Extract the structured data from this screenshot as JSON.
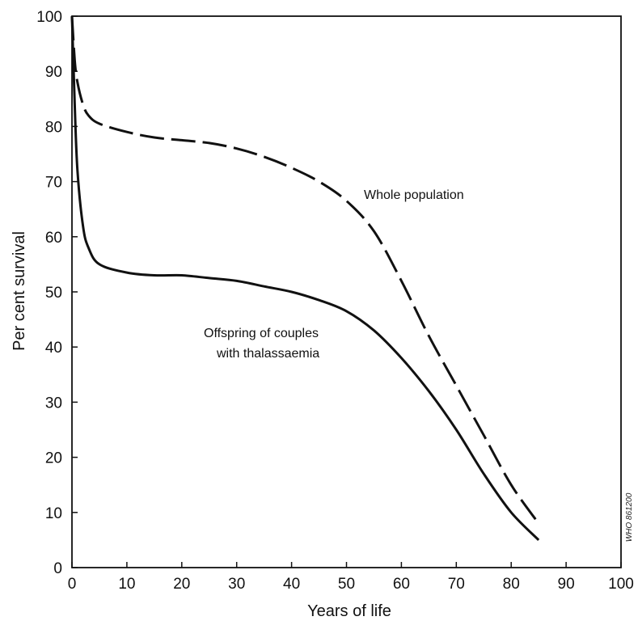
{
  "chart_data": {
    "type": "line",
    "title": "",
    "xlabel": "Years of life",
    "ylabel": "Per cent survival",
    "xlim": [
      0,
      100
    ],
    "ylim": [
      0,
      100
    ],
    "x_ticks": [
      0,
      10,
      20,
      30,
      40,
      50,
      60,
      70,
      80,
      90,
      100
    ],
    "y_ticks": [
      0,
      10,
      20,
      30,
      40,
      50,
      60,
      70,
      80,
      90,
      100
    ],
    "x_tick_labels": [
      "0",
      "10",
      "20",
      "30",
      "40",
      "50",
      "60",
      "70",
      "80",
      "90",
      "100"
    ],
    "y_tick_labels": [
      "0",
      "10",
      "20",
      "30",
      "40",
      "50",
      "60",
      "70",
      "80",
      "90",
      "100"
    ],
    "grid": false,
    "legend": "none",
    "series": [
      {
        "name": "Whole population",
        "line_style": "dashed",
        "x": [
          0,
          0.5,
          1,
          2,
          3,
          5,
          10,
          15,
          20,
          25,
          30,
          35,
          40,
          45,
          50,
          55,
          60,
          65,
          70,
          75,
          80,
          85
        ],
        "y": [
          100,
          92,
          88,
          84,
          82,
          80.5,
          79,
          78,
          77.5,
          77,
          76,
          74.5,
          72.5,
          70,
          66.5,
          61,
          52,
          42,
          33,
          24,
          15,
          8
        ]
      },
      {
        "name": "Offspring of couples with thalassaemia",
        "line_style": "solid",
        "x": [
          0,
          0.5,
          1,
          2,
          3,
          5,
          10,
          15,
          20,
          25,
          30,
          35,
          40,
          45,
          50,
          55,
          60,
          65,
          70,
          75,
          80,
          85
        ],
        "y": [
          100,
          84,
          72,
          62,
          58,
          55,
          53.5,
          53,
          53,
          52.5,
          52,
          51,
          50,
          48.5,
          46.5,
          43,
          38,
          32,
          25,
          17,
          10,
          5
        ]
      }
    ],
    "annotations": [
      {
        "text": "Whole population",
        "series": 0
      },
      {
        "lines": [
          "Offspring of couples",
          "with thalassaemia"
        ],
        "series": 1
      }
    ]
  },
  "credit_text": "WHO 861200"
}
